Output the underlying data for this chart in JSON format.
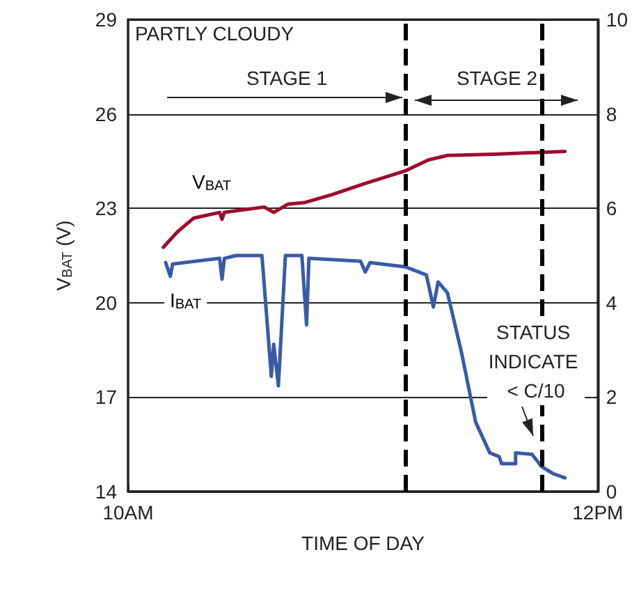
{
  "chart_data": {
    "type": "line",
    "xlabel": "TIME OF DAY",
    "ylabel": "V$_{BAT}$ (V)",
    "annotations": [
      "PARTLY CLOUDY",
      "STAGE 1",
      "STAGE 2",
      "STATUS INDICATE < C/10"
    ],
    "xlim": [
      10,
      12
    ],
    "xticks": [
      {
        "value": 10,
        "label": "10AM"
      },
      {
        "value": 12,
        "label": "12PM"
      }
    ],
    "ylim": [
      14,
      29
    ],
    "yticks": [
      14,
      17,
      20,
      23,
      26,
      29
    ],
    "y2lim": [
      0,
      10
    ],
    "y2ticks": [
      0,
      2,
      4,
      6,
      8,
      10
    ],
    "grid": "y",
    "legend": false,
    "marker": "none",
    "line_style": "solid",
    "ref_lines": [
      {
        "axis": "x",
        "value": 11.18,
        "color": "#000000",
        "line_style": "dashed"
      },
      {
        "axis": "x",
        "value": 11.76,
        "color": "#000000",
        "line_style": "dashed"
      }
    ],
    "series": [
      {
        "name": "V$_{BAT}$",
        "color": "#9e0b2e",
        "x": [
          10.15,
          10.21,
          10.28,
          10.39,
          10.4,
          10.41,
          10.58,
          10.62,
          10.68,
          10.75,
          10.87,
          11.01,
          11.18,
          11.28,
          11.36,
          11.56,
          11.86
        ],
        "values": [
          21.76,
          22.25,
          22.69,
          22.87,
          22.65,
          22.87,
          23.04,
          22.87,
          23.13,
          23.18,
          23.44,
          23.79,
          24.19,
          24.54,
          24.68,
          24.72,
          24.81
        ]
      },
      {
        "name": "I$_{BAT}$",
        "axis": "y2",
        "color": "#3a5aa8",
        "x": [
          10.16,
          10.18,
          10.19,
          10.39,
          10.4,
          10.41,
          10.46,
          10.57,
          10.61,
          10.62,
          10.64,
          10.67,
          10.74,
          10.76,
          10.77,
          10.99,
          11.01,
          11.03,
          11.18,
          11.27,
          11.3,
          11.32,
          11.36,
          11.42,
          11.48,
          11.54,
          11.58,
          11.59,
          11.65,
          11.65,
          11.72,
          11.76,
          11.81,
          11.86
        ],
        "values": [
          4.85,
          4.56,
          4.82,
          4.94,
          4.5,
          4.94,
          5.0,
          5.0,
          2.44,
          3.12,
          2.24,
          5.0,
          5.0,
          3.53,
          4.94,
          4.88,
          4.65,
          4.85,
          4.76,
          4.59,
          3.91,
          4.44,
          4.21,
          2.94,
          1.47,
          0.82,
          0.74,
          0.59,
          0.59,
          0.82,
          0.79,
          0.53,
          0.38,
          0.29
        ]
      }
    ]
  }
}
